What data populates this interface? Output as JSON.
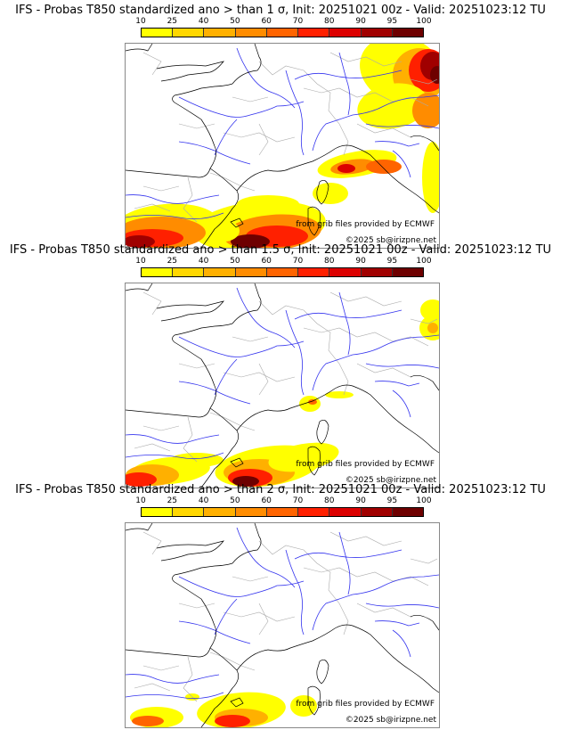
{
  "panels": [
    {
      "title": "IFS - Probas T850  standardized ano > than 1 σ, Init: 20251021 00z - Valid: 20251023:12 TU",
      "threshold_sigma": "1",
      "credit_source": "from grib files provided by ECMWF",
      "credit_copyright": "©2025 sb@irizpne.net"
    },
    {
      "title": "IFS - Probas T850  standardized ano > than 1.5 σ, Init: 20251021 00z - Valid: 20251023:12 TU",
      "threshold_sigma": "1.5",
      "credit_source": "from grib files provided by ECMWF",
      "credit_copyright": "©2025 sb@irizpne.net"
    },
    {
      "title": "IFS - Probas T850  standardized ano > than 2 σ, Init: 20251021 00z - Valid: 20251023:12 TU",
      "threshold_sigma": "2",
      "credit_source": "from grib files provided by ECMWF",
      "credit_copyright": "©2025 sb@irizpne.net"
    }
  ],
  "colorbar": {
    "ticks": [
      "10",
      "25",
      "40",
      "50",
      "60",
      "70",
      "80",
      "90",
      "95",
      "100"
    ],
    "colors": [
      "#ffff00",
      "#ffd700",
      "#ffb000",
      "#ff8c00",
      "#ff6400",
      "#ff2000",
      "#dc0000",
      "#a00000",
      "#6e0000"
    ]
  },
  "map_colors": {
    "coastline": "#000000",
    "rivers": "#3333ee",
    "borders": "#aaaaaa"
  }
}
